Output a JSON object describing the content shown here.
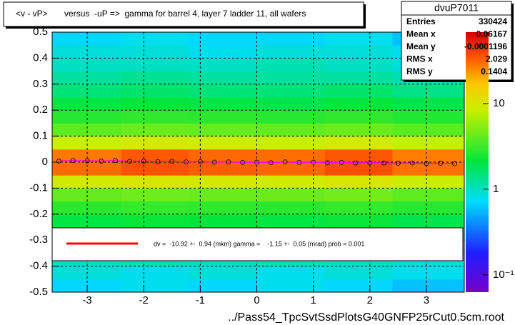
{
  "chart_data": {
    "type": "heatmap",
    "title": "<v - vP>       versus  -uP =>  gamma for barrel 4, layer 7 ladder 11, all wafers",
    "xlabel": "../Pass54_TpcSvtSsdPlotsG40GNFP25rCut0.5cm.root",
    "xlim": [
      -3.62,
      3.67
    ],
    "ylim": [
      -0.5,
      0.5
    ],
    "xticks": [
      -3,
      -2,
      -1,
      0,
      1,
      2,
      3
    ],
    "yticks": [
      -0.5,
      -0.4,
      -0.3,
      -0.2,
      -0.1,
      0,
      0.1,
      0.2,
      0.3,
      0.4,
      0.5
    ],
    "grid": true,
    "log_z": true,
    "zlim": [
      0.063,
      68
    ],
    "zticks": [
      {
        "value": 0.1,
        "label": "10⁻¹"
      },
      1,
      10
    ],
    "xbins": [
      -3.62,
      -2.4,
      -1.2,
      0,
      1.2,
      2.4,
      3.67
    ],
    "ybins": [
      -0.5,
      -0.45,
      -0.4,
      -0.35,
      -0.3,
      -0.25,
      -0.2,
      -0.15,
      -0.1,
      -0.05,
      0,
      0.05,
      0.1,
      0.15,
      0.2,
      0.25,
      0.3,
      0.35,
      0.4,
      0.45,
      0.5
    ],
    "z": [
      [
        0.7,
        0.8,
        0.7,
        0.8,
        0.7,
        0.6
      ],
      [
        0.9,
        0.8,
        0.9,
        0.8,
        0.9,
        0.8
      ],
      [
        1.0,
        1.1,
        1.0,
        1.1,
        1.0,
        0.9
      ],
      [
        1.2,
        1.3,
        1.2,
        1.2,
        1.3,
        1.1
      ],
      [
        1.5,
        1.6,
        1.5,
        1.6,
        1.5,
        1.4
      ],
      [
        2.0,
        2.2,
        2.1,
        2.0,
        2.2,
        1.9
      ],
      [
        2.8,
        3.0,
        2.9,
        2.8,
        3.0,
        2.7
      ],
      [
        4.2,
        4.5,
        4.3,
        4.4,
        4.6,
        4.0
      ],
      [
        9,
        10,
        9.5,
        9,
        10,
        8.5
      ],
      [
        30,
        36,
        33,
        31,
        37,
        29
      ],
      [
        28,
        34,
        31,
        30,
        35,
        27
      ],
      [
        8.5,
        9.5,
        9,
        8.5,
        9.5,
        8
      ],
      [
        4.0,
        4.3,
        4.2,
        4.1,
        4.4,
        3.9
      ],
      [
        2.7,
        2.9,
        2.8,
        2.7,
        2.9,
        2.6
      ],
      [
        2.0,
        2.1,
        2.0,
        1.9,
        2.1,
        1.9
      ],
      [
        1.5,
        1.6,
        1.5,
        1.5,
        1.6,
        1.4
      ],
      [
        1.2,
        1.3,
        1.2,
        1.2,
        1.2,
        1.1
      ],
      [
        1.0,
        1.0,
        1.0,
        1.1,
        1.0,
        0.9
      ],
      [
        0.9,
        0.9,
        0.8,
        0.9,
        0.9,
        0.8
      ],
      [
        0.7,
        0.8,
        0.7,
        0.7,
        0.8,
        0.6
      ]
    ],
    "profile": {
      "color": "#ff00ff",
      "x": [
        -3.5,
        -3.25,
        -3.0,
        -2.75,
        -2.5,
        -2.25,
        -2.0,
        -1.75,
        -1.5,
        -1.25,
        -1.0,
        -0.75,
        -0.5,
        -0.25,
        0.0,
        0.25,
        0.5,
        0.75,
        1.0,
        1.25,
        1.5,
        1.75,
        2.0,
        2.25,
        2.5,
        2.75,
        3.0,
        3.25,
        3.5
      ],
      "values": [
        0.004,
        0.006,
        0.005,
        0.004,
        0.006,
        0.003,
        0.004,
        0.002,
        0.003,
        0.001,
        0.002,
        0.0,
        0.001,
        -0.001,
        0.0,
        -0.002,
        0.001,
        -0.001,
        0.0,
        -0.002,
        -0.001,
        -0.003,
        -0.002,
        -0.003,
        -0.004,
        -0.003,
        -0.005,
        -0.004,
        -0.006
      ]
    },
    "stats": {
      "title": "dvuP7011",
      "rows": [
        [
          "Entries",
          330424
        ],
        [
          "Mean x",
          0.06167
        ],
        [
          "Mean y",
          -0.0001196
        ],
        [
          "RMS x",
          2.029
        ],
        [
          "RMS y",
          0.1404
        ]
      ]
    },
    "legend": {
      "color": "#ff0000",
      "text": "dv =  -10.92 +-  0.94 (mkm) gamma =    -1.15 +-  0.05 (mrad) prob = 0.001"
    }
  }
}
